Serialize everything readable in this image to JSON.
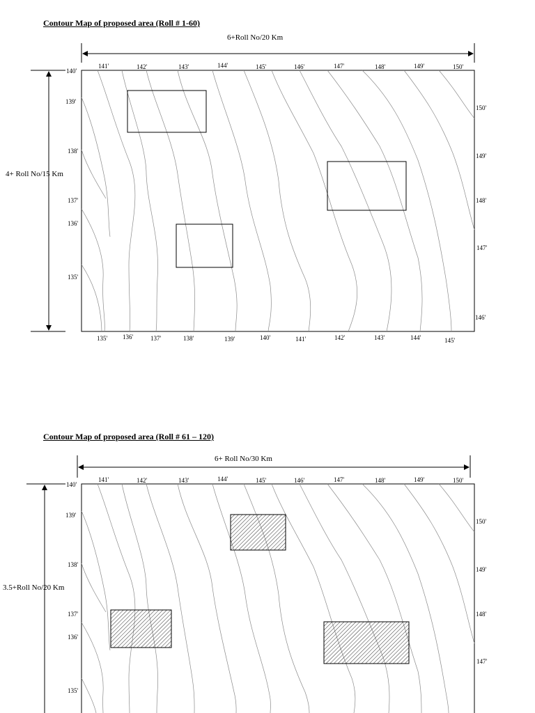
{
  "maps": [
    {
      "title": "Contour Map of proposed area  (Roll # 1-60)",
      "width_label": "6+Roll No/20   Km",
      "height_label": "4+ Roll No/15 Km",
      "top_ticks": [
        "141'",
        "142'",
        "143'",
        "144'",
        "145'",
        "146'",
        "147'",
        "148'",
        "149'",
        "150'"
      ],
      "left_ticks": [
        "140'",
        "139'",
        "138'",
        "137'",
        "136'",
        "135'"
      ],
      "right_ticks": [
        "150'",
        "149'",
        "148'",
        "147'",
        "146'"
      ],
      "bottom_ticks": [
        "135'",
        "136'",
        "137'",
        "138'",
        "139'",
        "140'",
        "141'",
        "142'",
        "143'",
        "144'",
        "145'"
      ],
      "hatched": false
    },
    {
      "title": "Contour Map of proposed area  (Roll # 61 – 120)",
      "width_label": "6+ Roll No/30 Km",
      "height_label": "3.5+Roll No/20 Km",
      "top_ticks": [
        "141'",
        "142'",
        "143'",
        "144'",
        "145'",
        "146'",
        "147'",
        "148'",
        "149'",
        "150'"
      ],
      "left_ticks": [
        "140'",
        "139'",
        "138'",
        "137'",
        "136'",
        "135'"
      ],
      "right_ticks": [
        "150'",
        "149'",
        "148'",
        "147'"
      ],
      "bottom_ticks": [],
      "hatched": true
    }
  ]
}
